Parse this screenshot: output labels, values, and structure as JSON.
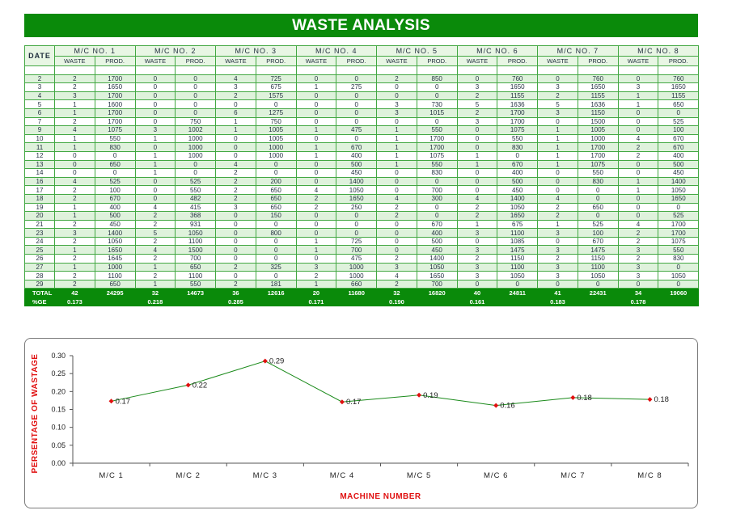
{
  "title": "WASTE ANALYSIS",
  "table": {
    "date_header": "DATE",
    "machines": [
      "M/C NO. 1",
      "M/C NO. 2",
      "M/C NO. 3",
      "M/C NO. 4",
      "M/C NO. 5",
      "M/C NO. 6",
      "M/C NO. 7",
      "M/C NO. 8"
    ],
    "sub_headers": [
      "WASTE",
      "PROD."
    ],
    "rows": [
      [
        "",
        "",
        "",
        "",
        "",
        "",
        "",
        "",
        "",
        "",
        "",
        "",
        "",
        "",
        "",
        "",
        ""
      ],
      [
        "2",
        "2",
        "1700",
        "0",
        "0",
        "4",
        "725",
        "0",
        "0",
        "2",
        "850",
        "0",
        "760",
        "0",
        "760",
        "0",
        "760"
      ],
      [
        "3",
        "2",
        "1650",
        "0",
        "0",
        "3",
        "675",
        "1",
        "275",
        "0",
        "0",
        "3",
        "1650",
        "3",
        "1650",
        "3",
        "1650"
      ],
      [
        "4",
        "3",
        "1700",
        "0",
        "0",
        "2",
        "1575",
        "0",
        "0",
        "0",
        "0",
        "2",
        "1155",
        "2",
        "1155",
        "1",
        "1155"
      ],
      [
        "5",
        "1",
        "1600",
        "0",
        "0",
        "0",
        "0",
        "0",
        "0",
        "3",
        "730",
        "5",
        "1636",
        "5",
        "1636",
        "1",
        "650"
      ],
      [
        "6",
        "1",
        "1700",
        "0",
        "0",
        "6",
        "1275",
        "0",
        "0",
        "3",
        "1015",
        "2",
        "1700",
        "3",
        "1150",
        "0",
        "0"
      ],
      [
        "7",
        "2",
        "1700",
        "0",
        "750",
        "1",
        "750",
        "0",
        "0",
        "0",
        "0",
        "3",
        "1700",
        "0",
        "1500",
        "0",
        "525"
      ],
      [
        "9",
        "4",
        "1075",
        "3",
        "1002",
        "1",
        "1005",
        "1",
        "475",
        "1",
        "550",
        "0",
        "1075",
        "1",
        "1005",
        "0",
        "100"
      ],
      [
        "10",
        "1",
        "550",
        "1",
        "1000",
        "0",
        "1005",
        "0",
        "0",
        "1",
        "1700",
        "0",
        "550",
        "1",
        "1000",
        "4",
        "670"
      ],
      [
        "11",
        "1",
        "830",
        "0",
        "1000",
        "0",
        "1000",
        "1",
        "670",
        "1",
        "1700",
        "0",
        "830",
        "1",
        "1700",
        "2",
        "670"
      ],
      [
        "12",
        "0",
        "0",
        "1",
        "1000",
        "0",
        "1000",
        "1",
        "400",
        "1",
        "1075",
        "1",
        "0",
        "1",
        "1700",
        "2",
        "400"
      ],
      [
        "13",
        "0",
        "650",
        "1",
        "0",
        "4",
        "0",
        "0",
        "500",
        "1",
        "550",
        "1",
        "670",
        "1",
        "1075",
        "0",
        "500"
      ],
      [
        "14",
        "0",
        "0",
        "1",
        "0",
        "2",
        "0",
        "0",
        "450",
        "0",
        "830",
        "0",
        "400",
        "0",
        "550",
        "0",
        "450"
      ],
      [
        "16",
        "4",
        "525",
        "0",
        "525",
        "2",
        "200",
        "0",
        "1400",
        "0",
        "0",
        "0",
        "500",
        "0",
        "830",
        "1",
        "1400"
      ],
      [
        "17",
        "2",
        "100",
        "0",
        "550",
        "2",
        "650",
        "4",
        "1050",
        "0",
        "700",
        "0",
        "450",
        "0",
        "0",
        "1",
        "1050"
      ],
      [
        "18",
        "2",
        "670",
        "0",
        "482",
        "2",
        "650",
        "2",
        "1650",
        "4",
        "300",
        "4",
        "1400",
        "4",
        "0",
        "0",
        "1650"
      ],
      [
        "19",
        "1",
        "400",
        "4",
        "415",
        "3",
        "650",
        "2",
        "250",
        "2",
        "0",
        "2",
        "1050",
        "2",
        "650",
        "0",
        "0"
      ],
      [
        "20",
        "1",
        "500",
        "2",
        "368",
        "0",
        "150",
        "0",
        "0",
        "2",
        "0",
        "2",
        "1650",
        "2",
        "0",
        "0",
        "525"
      ],
      [
        "21",
        "2",
        "450",
        "2",
        "931",
        "0",
        "0",
        "0",
        "0",
        "0",
        "670",
        "1",
        "675",
        "1",
        "525",
        "4",
        "1700"
      ],
      [
        "23",
        "3",
        "1400",
        "5",
        "1050",
        "0",
        "800",
        "0",
        "0",
        "0",
        "400",
        "3",
        "1100",
        "3",
        "100",
        "2",
        "1700"
      ],
      [
        "24",
        "2",
        "1050",
        "2",
        "1100",
        "0",
        "0",
        "1",
        "725",
        "0",
        "500",
        "0",
        "1085",
        "0",
        "670",
        "2",
        "1075"
      ],
      [
        "25",
        "1",
        "1650",
        "4",
        "1500",
        "0",
        "0",
        "1",
        "700",
        "0",
        "450",
        "3",
        "1475",
        "3",
        "1475",
        "3",
        "550"
      ],
      [
        "26",
        "2",
        "1645",
        "2",
        "700",
        "0",
        "0",
        "0",
        "475",
        "2",
        "1400",
        "2",
        "1150",
        "2",
        "1150",
        "2",
        "830"
      ],
      [
        "27",
        "1",
        "1000",
        "1",
        "650",
        "2",
        "325",
        "3",
        "1000",
        "3",
        "1050",
        "3",
        "1100",
        "3",
        "1100",
        "3",
        "0"
      ],
      [
        "28",
        "2",
        "1100",
        "2",
        "1100",
        "0",
        "0",
        "2",
        "1000",
        "4",
        "1650",
        "3",
        "1050",
        "3",
        "1050",
        "3",
        "1050"
      ],
      [
        "29",
        "2",
        "650",
        "1",
        "550",
        "2",
        "181",
        "1",
        "660",
        "2",
        "700",
        "0",
        "0",
        "0",
        "0",
        "0",
        "0"
      ]
    ],
    "total_label": "TOTAL",
    "totals": [
      "42",
      "24295",
      "32",
      "14673",
      "36",
      "12616",
      "20",
      "11680",
      "32",
      "16820",
      "40",
      "24811",
      "41",
      "22431",
      "34",
      "19060"
    ],
    "pct_label": "%GE",
    "percentages": [
      "0.173",
      "0.218",
      "0.285",
      "0.171",
      "0.190",
      "0.161",
      "0.183",
      "0.178"
    ]
  },
  "chart_data": {
    "type": "line",
    "categories": [
      "M/C 1",
      "M/C 2",
      "M/C 3",
      "M/C 4",
      "M/C 5",
      "M/C 6",
      "M/C 7",
      "M/C 8"
    ],
    "values": [
      0.17,
      0.22,
      0.29,
      0.17,
      0.19,
      0.16,
      0.18,
      0.18
    ],
    "plotted_values": [
      0.173,
      0.218,
      0.285,
      0.171,
      0.19,
      0.161,
      0.183,
      0.178
    ],
    "xlabel": "MACHINE NUMBER",
    "ylabel": "PERSENTAGE OF WASTAGE",
    "ylim": [
      0,
      0.3
    ],
    "yticks": [
      "0.00",
      "0.05",
      "0.10",
      "0.15",
      "0.20",
      "0.25",
      "0.30"
    ],
    "line_color": "#1a8a1a",
    "marker_color": "#e01010",
    "title_color": "#e01010"
  }
}
